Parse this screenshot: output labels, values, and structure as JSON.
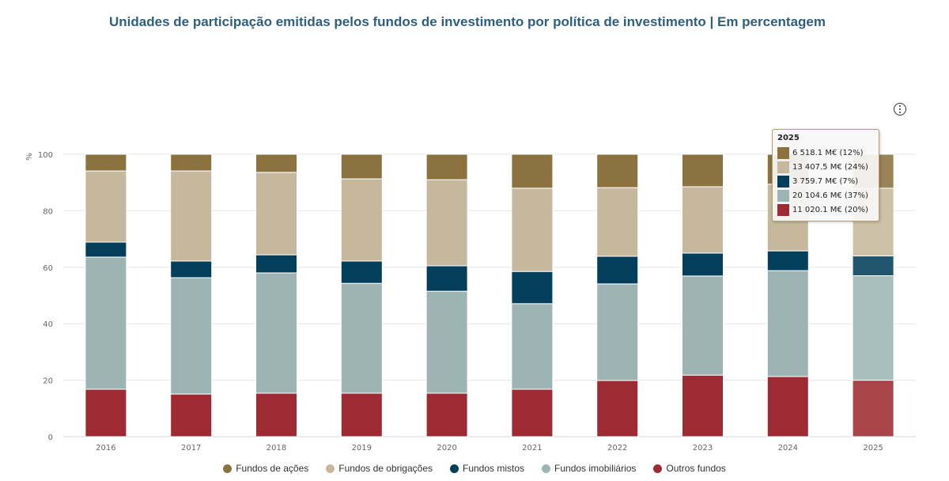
{
  "title": "Unidades de participação emitidas pelos fundos de investimento por política de investimento | Em percentagem",
  "menu_icon": "context-menu-icon",
  "chart_data": {
    "type": "bar",
    "stacked": true,
    "ylabel": "%",
    "ylim": [
      0,
      100
    ],
    "yticks": [
      "0",
      "20",
      "40",
      "60",
      "80",
      "100"
    ],
    "grid": true,
    "legend_position": "bottom",
    "categories": [
      "2016",
      "2017",
      "2018",
      "2019",
      "2020",
      "2021",
      "2022",
      "2023",
      "2024",
      "2025"
    ],
    "series": [
      {
        "name": "Outros fundos",
        "color": "#9e2b33",
        "values": [
          16.8,
          15.1,
          15.4,
          15.4,
          15.4,
          16.8,
          19.9,
          21.8,
          21.3,
          20
        ]
      },
      {
        "name": "Fundos imobiliários",
        "color": "#9cb5b4",
        "values": [
          46.8,
          41.2,
          42.6,
          38.9,
          36.1,
          30.3,
          34.2,
          35.1,
          37.5,
          37
        ]
      },
      {
        "name": "Fundos mistos",
        "color": "#033e5a",
        "values": [
          5.3,
          5.9,
          6.4,
          7.9,
          9.0,
          11.4,
          9.8,
          8.1,
          7.0,
          7
        ]
      },
      {
        "name": "Fundos de obrigações",
        "color": "#c6b89c",
        "values": [
          25.2,
          31.9,
          29.2,
          29.1,
          30.5,
          29.5,
          24.3,
          23.5,
          23.6,
          24
        ]
      },
      {
        "name": "Fundos de ações",
        "color": "#8c723f",
        "values": [
          5.9,
          5.9,
          6.4,
          8.7,
          9.0,
          12.0,
          11.8,
          11.5,
          10.6,
          12
        ]
      }
    ],
    "legend": [
      "Fundos de ações",
      "Fundos de obrigações",
      "Fundos mistos",
      "Fundos imobiliários",
      "Outros fundos"
    ],
    "highlighted_category": "2025"
  },
  "tooltip": {
    "header": "2025",
    "rows": [
      {
        "text": "6 518.1 M€ (12%)",
        "color": "#8c723f"
      },
      {
        "text": "13 407.5 M€ (24%)",
        "color": "#c6b89c"
      },
      {
        "text": "3 759.7 M€ (7%)",
        "color": "#033e5a"
      },
      {
        "text": "20 104.6 M€ (37%)",
        "color": "#9cb5b4"
      },
      {
        "text": "11 020.1 M€ (20%)",
        "color": "#9e2b33"
      }
    ]
  }
}
